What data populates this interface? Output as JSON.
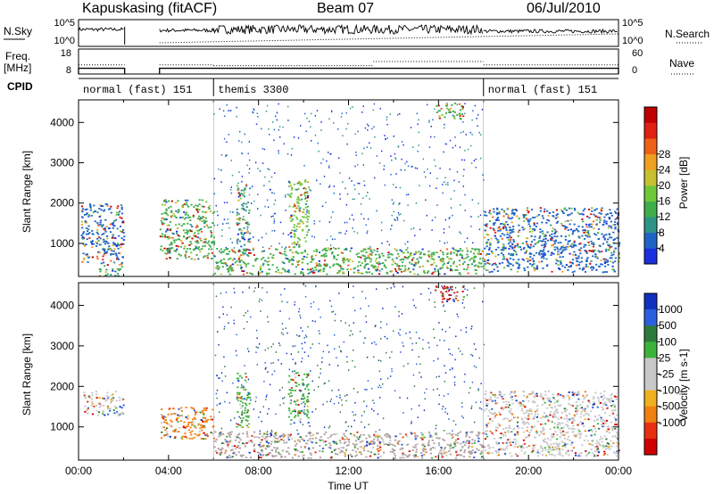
{
  "header": {
    "station": "Kapuskasing (fitACF)",
    "beam": "Beam 07",
    "date": "06/Jul/2010"
  },
  "noise_panel": {
    "left_label": "N.Sky",
    "left_ticks": [
      "10^5",
      "10^0"
    ],
    "right_ticks": [
      "10^5",
      "10^0"
    ],
    "right_label": "N.Search"
  },
  "freq_panel": {
    "left_label_top": "Freq.",
    "left_label_bottom": "[MHz]",
    "left_ticks": [
      "18",
      "8"
    ],
    "right_ticks": [
      "60",
      "0"
    ],
    "right_label": "Nave",
    "freq_series": [
      {
        "start": 0,
        "end": 2.05,
        "value": 10.3
      },
      {
        "start": 3.6,
        "end": 24,
        "value": 10.3
      }
    ],
    "nave_series": [
      {
        "start": 0,
        "end": 2.05,
        "value": 22
      },
      {
        "start": 3.6,
        "end": 6,
        "value": 22
      },
      {
        "start": 6,
        "end": 13.1,
        "value": 20
      },
      {
        "start": 13.1,
        "end": 18,
        "value": 30
      },
      {
        "start": 18,
        "end": 24,
        "value": 22
      }
    ]
  },
  "cpid": {
    "label": "CPID",
    "segments": [
      {
        "start": 0,
        "end": 6,
        "text": "normal (fast) 151"
      },
      {
        "start": 6,
        "end": 18,
        "text": "themis 3300"
      },
      {
        "start": 18,
        "end": 24,
        "text": "normal (fast) 151"
      }
    ]
  },
  "chart_data": [
    {
      "type": "heatmap",
      "quantity": "Power",
      "ylabel": "Slant Range [km]",
      "ylim": [
        180,
        4560
      ],
      "yticks": [
        "1000",
        "2000",
        "3000",
        "4000"
      ],
      "colorbar_label": "Power [dB]",
      "colorbar_ticks": [
        "4",
        "8",
        "12",
        "16",
        "20",
        "24",
        "28"
      ],
      "colorbar_colors": [
        "#1a2fe0",
        "#1e64c8",
        "#2e9488",
        "#3fae4a",
        "#6fc83a",
        "#c8c030",
        "#f0a020",
        "#f06018",
        "#e02010",
        "#c00000"
      ],
      "regions": [
        {
          "t0": 0.1,
          "t1": 2.0,
          "r0": 500,
          "r1": 2000,
          "color": "#1e64c8"
        },
        {
          "t0": 0.9,
          "t1": 1.9,
          "r0": 200,
          "r1": 500,
          "color": "#3fae4a"
        },
        {
          "t0": 3.6,
          "t1": 6.0,
          "r0": 600,
          "r1": 2100,
          "color": "#3fae4a"
        },
        {
          "t0": 6.0,
          "t1": 18.0,
          "r0": 250,
          "r1": 900,
          "color": "#3fae4a"
        },
        {
          "t0": 7.0,
          "t1": 7.6,
          "r0": 700,
          "r1": 2500,
          "color": "#2e9488"
        },
        {
          "t0": 9.3,
          "t1": 10.2,
          "r0": 900,
          "r1": 2600,
          "color": "#6fc83a"
        },
        {
          "t0": 15.8,
          "t1": 17.1,
          "r0": 4100,
          "r1": 4500,
          "color": "#3fae4a"
        },
        {
          "t0": 18.0,
          "t1": 24.0,
          "r0": 300,
          "r1": 1900,
          "color": "#1e64c8"
        }
      ]
    },
    {
      "type": "heatmap",
      "quantity": "Velocity",
      "xlabel": "Time UT",
      "ylabel": "Slant Range [km]",
      "xlim": [
        0,
        24
      ],
      "xticks": [
        "00:00",
        "04:00",
        "08:00",
        "12:00",
        "16:00",
        "20:00",
        "00:00"
      ],
      "ylim": [
        180,
        4560
      ],
      "yticks": [
        "1000",
        "2000",
        "3000",
        "4000"
      ],
      "colorbar_label": "Velocity [m s-1]",
      "colorbar_ticks": [
        "1000",
        "500",
        "100",
        "25",
        "-25",
        "-100",
        "-500",
        "-1000"
      ],
      "colorbar_colors": [
        "#1030c0",
        "#2a60e0",
        "#2e7a3a",
        "#3cb43c",
        "#c8c8c8",
        "#c8c8c8",
        "#f0b020",
        "#f08010",
        "#e83010",
        "#d00000"
      ],
      "regions": [
        {
          "t0": 0.2,
          "t1": 2.0,
          "r0": 1300,
          "r1": 1900,
          "color": "#c8c8c8"
        },
        {
          "t0": 3.6,
          "t1": 6.0,
          "r0": 700,
          "r1": 1500,
          "color": "#f08010"
        },
        {
          "t0": 6.0,
          "t1": 18.0,
          "r0": 250,
          "r1": 900,
          "color": "#b0a0a0"
        },
        {
          "t0": 7.0,
          "t1": 7.6,
          "r0": 1000,
          "r1": 2400,
          "color": "#3cb43c"
        },
        {
          "t0": 9.3,
          "t1": 10.2,
          "r0": 1100,
          "r1": 2400,
          "color": "#3cb43c"
        },
        {
          "t0": 15.8,
          "t1": 17.1,
          "r0": 4100,
          "r1": 4500,
          "color": "#c02020"
        },
        {
          "t0": 18.0,
          "t1": 24.0,
          "r0": 300,
          "r1": 1900,
          "color": "#c8c8c8"
        }
      ]
    }
  ]
}
